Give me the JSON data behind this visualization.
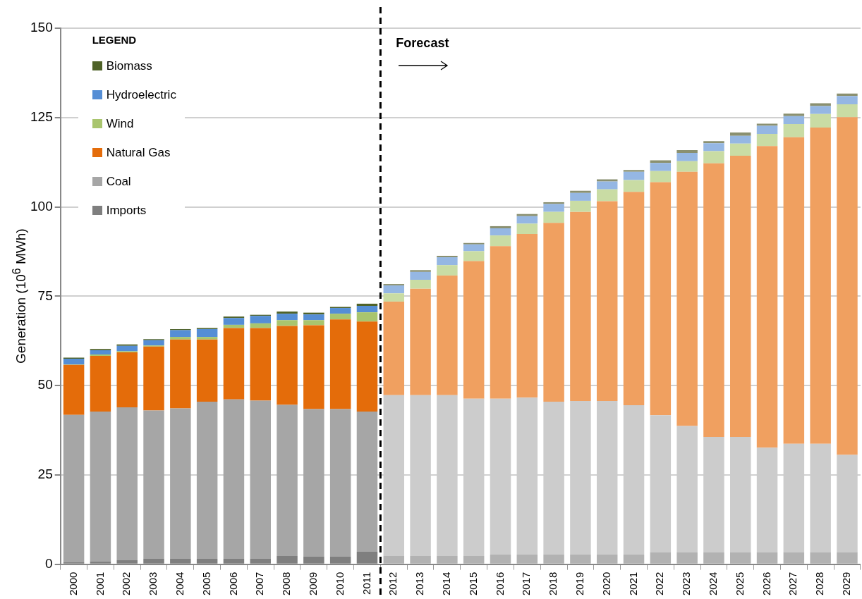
{
  "chart_data": {
    "type": "bar",
    "stacked": true,
    "ylabel": "Generation (10$^{6}$ MWh)",
    "legend_title": "LEGEND",
    "legend": "top left",
    "grid": "y",
    "categories": [
      "2000",
      "2001",
      "2002",
      "2003",
      "2004",
      "2005",
      "2006",
      "2007",
      "2008",
      "2009",
      "2010",
      "2011",
      "2012",
      "2013",
      "2014",
      "2015",
      "2016",
      "2017",
      "2018",
      "2019",
      "2020",
      "2021",
      "2022",
      "2023",
      "2024",
      "2025",
      "2026",
      "2027",
      "2028",
      "2029"
    ],
    "ylim": [
      0,
      150
    ],
    "yticks": [
      0,
      25,
      50,
      75,
      100,
      125,
      150
    ],
    "ref_lines": [
      {
        "axis": "x",
        "value": "2012",
        "label": null,
        "color": "#000000",
        "line_style": "dashed"
      }
    ],
    "annotations": [
      "Forecast"
    ],
    "series": [
      {
        "name": "Imports",
        "color": "#7f7f7f",
        "colors": [
          "#7f7f7f",
          "#7f7f7f",
          "#7f7f7f",
          "#7f7f7f",
          "#7f7f7f",
          "#7f7f7f",
          "#7f7f7f",
          "#7f7f7f",
          "#7f7f7f",
          "#7f7f7f",
          "#7f7f7f",
          "#7f7f7f",
          "#b2b2b2",
          "#b2b2b2",
          "#b2b2b2",
          "#b2b2b2",
          "#b2b2b2",
          "#b2b2b2",
          "#b2b2b2",
          "#b2b2b2",
          "#b2b2b2",
          "#b2b2b2",
          "#b2b2b2",
          "#b2b2b2",
          "#b2b2b2",
          "#b2b2b2",
          "#b2b2b2",
          "#b2b2b2",
          "#b2b2b2",
          "#b2b2b2"
        ],
        "values": [
          0.5,
          0.8,
          1.1,
          1.5,
          1.5,
          1.5,
          1.5,
          1.5,
          2.3,
          2.1,
          2.1,
          3.5,
          2.3,
          2.3,
          2.3,
          2.3,
          2.7,
          2.7,
          2.7,
          2.7,
          2.7,
          2.7,
          3.4,
          3.4,
          3.4,
          3.4,
          3.4,
          3.4,
          3.4,
          3.4
        ]
      },
      {
        "name": "Coal",
        "color": "#a6a6a6",
        "colors": [
          "#a6a6a6",
          "#a6a6a6",
          "#a6a6a6",
          "#a6a6a6",
          "#a6a6a6",
          "#a6a6a6",
          "#a6a6a6",
          "#a6a6a6",
          "#a6a6a6",
          "#a6a6a6",
          "#a6a6a6",
          "#a6a6a6",
          "#cccccc",
          "#cccccc",
          "#cccccc",
          "#cccccc",
          "#cccccc",
          "#cccccc",
          "#cccccc",
          "#cccccc",
          "#cccccc",
          "#cccccc",
          "#cccccc",
          "#cccccc",
          "#cccccc",
          "#cccccc",
          "#cccccc",
          "#cccccc",
          "#cccccc",
          "#cccccc"
        ],
        "values": [
          41.3,
          41.9,
          42.8,
          41.5,
          42.1,
          44.0,
          44.6,
          44.3,
          42.3,
          41.3,
          41.3,
          39.2,
          45.0,
          45.0,
          45.0,
          44.0,
          43.6,
          43.9,
          42.8,
          43.0,
          43.0,
          41.8,
          38.3,
          35.3,
          32.2,
          32.2,
          29.2,
          30.3,
          30.3,
          27.2
        ]
      },
      {
        "name": "Natural Gas",
        "color": "#e46c0a",
        "colors": [
          "#e46c0a",
          "#e46c0a",
          "#e46c0a",
          "#e46c0a",
          "#e46c0a",
          "#e46c0a",
          "#e46c0a",
          "#e46c0a",
          "#e46c0a",
          "#e46c0a",
          "#e46c0a",
          "#e46c0a",
          "#f0a060",
          "#f0a060",
          "#f0a060",
          "#f0a060",
          "#f0a060",
          "#f0a060",
          "#f0a060",
          "#f0a060",
          "#f0a060",
          "#f0a060",
          "#f0a060",
          "#f0a060",
          "#f0a060",
          "#f0a060",
          "#f0a060",
          "#f0a060",
          "#f0a060",
          "#f0a060"
        ],
        "values": [
          14.0,
          15.6,
          15.4,
          17.9,
          19.3,
          17.4,
          20.0,
          20.3,
          22.1,
          23.5,
          25.1,
          25.2,
          26.2,
          29.8,
          33.5,
          38.5,
          42.7,
          45.8,
          50.0,
          52.9,
          55.9,
          59.7,
          65.2,
          71.1,
          76.6,
          78.7,
          84.4,
          85.8,
          88.5,
          94.5
        ]
      },
      {
        "name": "Wind",
        "color": "#a9c56e",
        "colors": [
          "#a9c56e",
          "#a9c56e",
          "#a9c56e",
          "#a9c56e",
          "#a9c56e",
          "#a9c56e",
          "#a9c56e",
          "#a9c56e",
          "#a9c56e",
          "#a9c56e",
          "#a9c56e",
          "#a9c56e",
          "#c9dca4",
          "#c9dca4",
          "#c9dca4",
          "#c9dca4",
          "#c9dca4",
          "#c9dca4",
          "#c9dca4",
          "#c9dca4",
          "#c9dca4",
          "#c9dca4",
          "#c9dca4",
          "#c9dca4",
          "#c9dca4",
          "#c9dca4",
          "#c9dca4",
          "#c9dca4",
          "#c9dca4",
          "#c9dca4"
        ],
        "values": [
          0.1,
          0.4,
          0.3,
          0.3,
          0.7,
          0.7,
          0.9,
          1.3,
          1.6,
          1.4,
          1.6,
          2.6,
          2.3,
          2.5,
          2.9,
          2.8,
          3.0,
          2.9,
          3.1,
          3.1,
          3.3,
          3.3,
          3.1,
          3.0,
          3.4,
          3.4,
          3.4,
          3.7,
          3.8,
          3.6
        ]
      },
      {
        "name": "Hydroelectric",
        "color": "#558ed5",
        "colors": [
          "#558ed5",
          "#558ed5",
          "#558ed5",
          "#558ed5",
          "#558ed5",
          "#558ed5",
          "#558ed5",
          "#558ed5",
          "#558ed5",
          "#558ed5",
          "#558ed5",
          "#558ed5",
          "#95b7e3",
          "#95b7e3",
          "#95b7e3",
          "#95b7e3",
          "#95b7e3",
          "#95b7e3",
          "#95b7e3",
          "#95b7e3",
          "#95b7e3",
          "#95b7e3",
          "#95b7e3",
          "#95b7e3",
          "#95b7e3",
          "#95b7e3",
          "#95b7e3",
          "#95b7e3",
          "#95b7e3",
          "#95b7e3"
        ],
        "values": [
          1.6,
          1.2,
          1.5,
          1.5,
          1.9,
          2.2,
          1.9,
          2.1,
          1.8,
          1.6,
          1.6,
          1.8,
          2.2,
          2.2,
          2.2,
          1.9,
          2.0,
          2.1,
          2.2,
          2.2,
          2.2,
          2.3,
          2.3,
          2.3,
          2.2,
          2.2,
          2.3,
          2.2,
          2.2,
          2.3
        ]
      },
      {
        "name": "Biomass",
        "color": "#4f6228",
        "colors": [
          "#4f6228",
          "#4f6228",
          "#4f6228",
          "#4f6228",
          "#4f6228",
          "#4f6228",
          "#4f6228",
          "#4f6228",
          "#4f6228",
          "#4f6228",
          "#4f6228",
          "#4f6228",
          "#8a9070",
          "#8a9070",
          "#8a9070",
          "#8a9070",
          "#8a9070",
          "#8a9070",
          "#8a9070",
          "#8a9070",
          "#8a9070",
          "#8a9070",
          "#8a9070",
          "#8a9070",
          "#8a9070",
          "#8a9070",
          "#8a9070",
          "#8a9070",
          "#8a9070",
          "#8a9070"
        ],
        "values": [
          0.3,
          0.3,
          0.4,
          0.3,
          0.3,
          0.3,
          0.4,
          0.3,
          0.6,
          0.5,
          0.3,
          0.6,
          0.4,
          0.5,
          0.4,
          0.4,
          0.6,
          0.6,
          0.5,
          0.6,
          0.6,
          0.5,
          0.7,
          0.8,
          0.6,
          0.9,
          0.6,
          0.7,
          0.8,
          0.7
        ]
      }
    ]
  }
}
